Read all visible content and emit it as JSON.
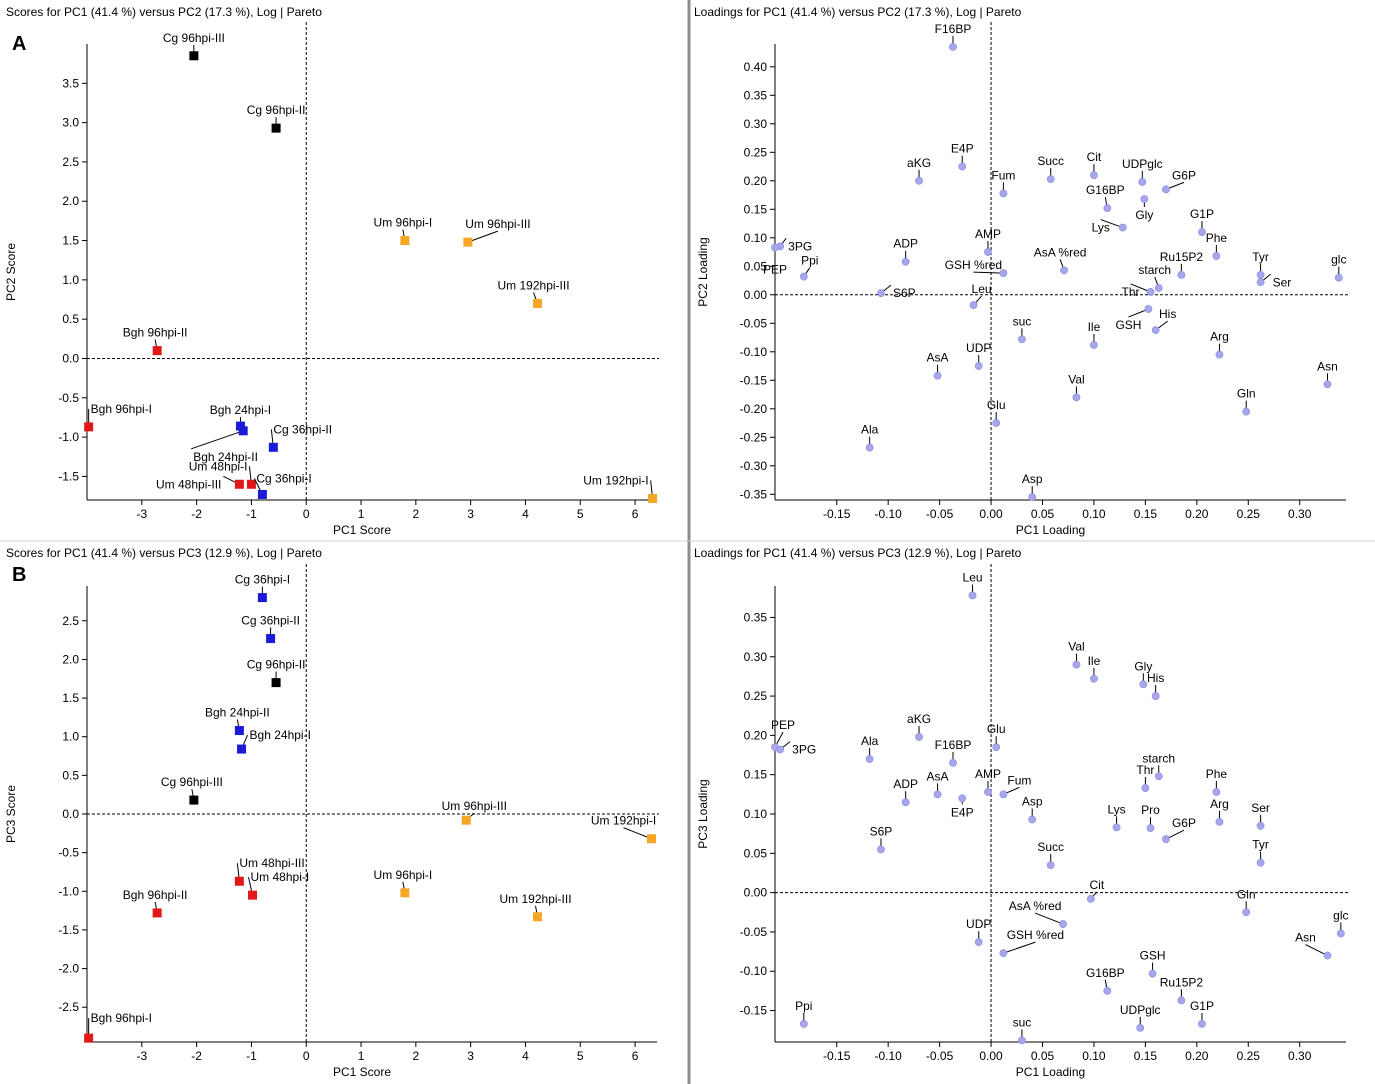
{
  "figure_labels": {
    "a": "A",
    "b": "B"
  },
  "colors": {
    "Bgh": "#e01818",
    "Um48": "#e01818",
    "Cg36": "#1a1ad8",
    "Bgh24": "#1a1ad8",
    "Cg96": "#000000",
    "Um96": "#f5a623",
    "Um192": "#f5a623",
    "loading": "#a6a6ea",
    "divider": "#8c8c8c"
  },
  "chart_data": [
    {
      "type": "scatter",
      "id": "scoresA",
      "title": "Scores for PC1 (41.4 %) versus PC2 (17.3 %), Log | Pareto",
      "xlabel": "PC1 Score",
      "ylabel": "PC2 Score",
      "xlim": [
        -4.0,
        6.4
      ],
      "ylim": [
        -1.8,
        4.0
      ],
      "xticks": [
        "-3",
        "-2",
        "-1",
        "0",
        "1",
        "2",
        "3",
        "4",
        "5",
        "6"
      ],
      "yticks": [
        "-1.5",
        "-1.0",
        "-0.5",
        "0.0",
        "0.5",
        "1.0",
        "1.5",
        "2.0",
        "2.5",
        "3.0",
        "3.5"
      ],
      "points": [
        {
          "label": "Cg 96hpi-III",
          "x": -2.05,
          "y": 3.85,
          "c": "Cg96"
        },
        {
          "label": "Cg 96hpi-II",
          "x": -0.55,
          "y": 2.93,
          "c": "Cg96"
        },
        {
          "label": "Um 96hpi-I",
          "x": 1.8,
          "y": 1.5,
          "c": "Um96"
        },
        {
          "label": "Um 96hpi-III",
          "x": 2.95,
          "y": 1.48,
          "c": "Um96"
        },
        {
          "label": "Um 192hpi-III",
          "x": 4.22,
          "y": 0.7,
          "c": "Um192"
        },
        {
          "label": "Bgh 96hpi-II",
          "x": -2.72,
          "y": 0.1,
          "c": "Bgh"
        },
        {
          "label": "Bgh 96hpi-I",
          "x": -3.97,
          "y": -0.87,
          "c": "Bgh"
        },
        {
          "label": "Bgh 24hpi-I",
          "x": -1.2,
          "y": -0.86,
          "c": "Bgh24"
        },
        {
          "label": "Bgh 24hpi-II",
          "x": -1.15,
          "y": -0.92,
          "c": "Bgh24"
        },
        {
          "label": "Cg 36hpi-II",
          "x": -0.6,
          "y": -1.13,
          "c": "Cg36"
        },
        {
          "label": "Um 48hpi-I",
          "x": -1.0,
          "y": -1.6,
          "c": "Um48"
        },
        {
          "label": "Um 48hpi-III",
          "x": -1.22,
          "y": -1.6,
          "c": "Um48"
        },
        {
          "label": "Cg 36hpi-I",
          "x": -0.8,
          "y": -1.73,
          "c": "Cg36"
        },
        {
          "label": "Um 192hpi-I",
          "x": 6.32,
          "y": -1.78,
          "c": "Um192"
        }
      ]
    },
    {
      "type": "scatter",
      "id": "loadingsA",
      "title": "Loadings for PC1 (41.4 %) versus PC2 (17.3 %), Log | Pareto",
      "xlabel": "PC1 Loading",
      "ylabel": "PC2 Loading",
      "xlim": [
        -0.21,
        0.345
      ],
      "ylim": [
        -0.36,
        0.44
      ],
      "xticks": [
        "-0.15",
        "-0.10",
        "-0.05",
        "0.00",
        "0.05",
        "0.10",
        "0.15",
        "0.20",
        "0.25",
        "0.30"
      ],
      "yticks": [
        "-0.35",
        "-0.30",
        "-0.25",
        "-0.20",
        "-0.15",
        "-0.10",
        "-0.05",
        "0.00",
        "0.05",
        "0.10",
        "0.15",
        "0.20",
        "0.25",
        "0.30",
        "0.35",
        "0.40"
      ],
      "points": [
        {
          "label": "F16BP",
          "x": -0.037,
          "y": 0.435
        },
        {
          "label": "aKG",
          "x": -0.07,
          "y": 0.2
        },
        {
          "label": "E4P",
          "x": -0.028,
          "y": 0.225
        },
        {
          "label": "Fum",
          "x": 0.012,
          "y": 0.178
        },
        {
          "label": "Succ",
          "x": 0.058,
          "y": 0.203
        },
        {
          "label": "Cit",
          "x": 0.1,
          "y": 0.21
        },
        {
          "label": "UDPglc",
          "x": 0.147,
          "y": 0.198
        },
        {
          "label": "G6P",
          "x": 0.17,
          "y": 0.185
        },
        {
          "label": "G16BP",
          "x": 0.113,
          "y": 0.152
        },
        {
          "label": "Gly",
          "x": 0.149,
          "y": 0.168
        },
        {
          "label": "Lys",
          "x": 0.128,
          "y": 0.118
        },
        {
          "label": "G1P",
          "x": 0.205,
          "y": 0.11
        },
        {
          "label": "3PG",
          "x": -0.205,
          "y": 0.085
        },
        {
          "label": "PEP",
          "x": -0.21,
          "y": 0.083
        },
        {
          "label": "Ppi",
          "x": -0.182,
          "y": 0.032
        },
        {
          "label": "ADP",
          "x": -0.083,
          "y": 0.058
        },
        {
          "label": "AMP",
          "x": -0.003,
          "y": 0.075
        },
        {
          "label": "GSH %red",
          "x": 0.012,
          "y": 0.038
        },
        {
          "label": "AsA %red",
          "x": 0.071,
          "y": 0.043
        },
        {
          "label": "Phe",
          "x": 0.219,
          "y": 0.068
        },
        {
          "label": "Tyr",
          "x": 0.262,
          "y": 0.035
        },
        {
          "label": "glc",
          "x": 0.338,
          "y": 0.03
        },
        {
          "label": "Ru15P2",
          "x": 0.185,
          "y": 0.035
        },
        {
          "label": "starch",
          "x": 0.163,
          "y": 0.012
        },
        {
          "label": "Ser",
          "x": 0.262,
          "y": 0.022
        },
        {
          "label": "S6P",
          "x": -0.107,
          "y": 0.003
        },
        {
          "label": "Leu",
          "x": -0.017,
          "y": -0.018
        },
        {
          "label": "Thr",
          "x": 0.155,
          "y": 0.005
        },
        {
          "label": "GSH",
          "x": 0.153,
          "y": -0.025
        },
        {
          "label": "His",
          "x": 0.16,
          "y": -0.062
        },
        {
          "label": "suc",
          "x": 0.03,
          "y": -0.078
        },
        {
          "label": "Ile",
          "x": 0.1,
          "y": -0.088
        },
        {
          "label": "Arg",
          "x": 0.222,
          "y": -0.105
        },
        {
          "label": "Asn",
          "x": 0.327,
          "y": -0.157
        },
        {
          "label": "AsA",
          "x": -0.052,
          "y": -0.142
        },
        {
          "label": "UDP",
          "x": -0.012,
          "y": -0.125
        },
        {
          "label": "Val",
          "x": 0.083,
          "y": -0.18
        },
        {
          "label": "Gln",
          "x": 0.248,
          "y": -0.205
        },
        {
          "label": "Glu",
          "x": 0.005,
          "y": -0.225
        },
        {
          "label": "Ala",
          "x": -0.118,
          "y": -0.268
        },
        {
          "label": "Asp",
          "x": 0.04,
          "y": -0.355
        }
      ]
    },
    {
      "type": "scatter",
      "id": "scoresB",
      "title": "Scores for PC1 (41.4 %) versus PC3 (12.9 %), Log | Pareto",
      "xlabel": "PC1 Score",
      "ylabel": "PC3 Score",
      "xlim": [
        -4.0,
        6.4
      ],
      "ylim": [
        -2.95,
        2.95
      ],
      "xticks": [
        "-3",
        "-2",
        "-1",
        "0",
        "1",
        "2",
        "3",
        "4",
        "5",
        "6"
      ],
      "yticks": [
        "-2.5",
        "-2.0",
        "-1.5",
        "-1.0",
        "-0.5",
        "0.0",
        "0.5",
        "1.0",
        "1.5",
        "2.0",
        "2.5"
      ],
      "points": [
        {
          "label": "Cg 36hpi-I",
          "x": -0.8,
          "y": 2.8,
          "c": "Cg36"
        },
        {
          "label": "Cg 36hpi-II",
          "x": -0.65,
          "y": 2.27,
          "c": "Cg36"
        },
        {
          "label": "Cg 96hpi-II",
          "x": -0.55,
          "y": 1.7,
          "c": "Cg96"
        },
        {
          "label": "Bgh 24hpi-II",
          "x": -1.22,
          "y": 1.08,
          "c": "Bgh24"
        },
        {
          "label": "Bgh 24hpi-I",
          "x": -1.18,
          "y": 0.84,
          "c": "Bgh24"
        },
        {
          "label": "Cg 96hpi-III",
          "x": -2.05,
          "y": 0.18,
          "c": "Cg96"
        },
        {
          "label": "Um 96hpi-III",
          "x": 2.92,
          "y": -0.08,
          "c": "Um96"
        },
        {
          "label": "Um 192hpi-I",
          "x": 6.3,
          "y": -0.32,
          "c": "Um192"
        },
        {
          "label": "Um 48hpi-III",
          "x": -1.22,
          "y": -0.87,
          "c": "Um48"
        },
        {
          "label": "Um 48hpi-I",
          "x": -0.98,
          "y": -1.05,
          "c": "Um48"
        },
        {
          "label": "Um 96hpi-I",
          "x": 1.8,
          "y": -1.02,
          "c": "Um96"
        },
        {
          "label": "Um 192hpi-III",
          "x": 4.22,
          "y": -1.33,
          "c": "Um192"
        },
        {
          "label": "Bgh 96hpi-II",
          "x": -2.72,
          "y": -1.28,
          "c": "Bgh"
        },
        {
          "label": "Bgh 96hpi-I",
          "x": -3.97,
          "y": -2.9,
          "c": "Bgh"
        }
      ]
    },
    {
      "type": "scatter",
      "id": "loadingsB",
      "title": "Loadings for PC1 (41.4 %) versus PC3 (12.9 %), Log | Pareto",
      "xlabel": "PC1 Loading",
      "ylabel": "PC3 Loading",
      "xlim": [
        -0.21,
        0.345
      ],
      "ylim": [
        -0.19,
        0.39
      ],
      "xticks": [
        "-0.15",
        "-0.10",
        "-0.05",
        "0.00",
        "0.05",
        "0.10",
        "0.15",
        "0.20",
        "0.25",
        "0.30"
      ],
      "yticks": [
        "-0.15",
        "-0.10",
        "-0.05",
        "0.00",
        "0.05",
        "0.10",
        "0.15",
        "0.20",
        "0.25",
        "0.30",
        "0.35"
      ],
      "points": [
        {
          "label": "Leu",
          "x": -0.018,
          "y": 0.378
        },
        {
          "label": "Val",
          "x": 0.083,
          "y": 0.29
        },
        {
          "label": "Ile",
          "x": 0.1,
          "y": 0.272
        },
        {
          "label": "Gly",
          "x": 0.148,
          "y": 0.265
        },
        {
          "label": "His",
          "x": 0.16,
          "y": 0.25
        },
        {
          "label": "PEP",
          "x": -0.21,
          "y": 0.185
        },
        {
          "label": "3PG",
          "x": -0.205,
          "y": 0.182
        },
        {
          "label": "Ala",
          "x": -0.118,
          "y": 0.17
        },
        {
          "label": "aKG",
          "x": -0.07,
          "y": 0.198
        },
        {
          "label": "F16BP",
          "x": -0.037,
          "y": 0.165
        },
        {
          "label": "Glu",
          "x": 0.005,
          "y": 0.185
        },
        {
          "label": "starch",
          "x": 0.163,
          "y": 0.148
        },
        {
          "label": "Thr",
          "x": 0.15,
          "y": 0.133
        },
        {
          "label": "Phe",
          "x": 0.219,
          "y": 0.128
        },
        {
          "label": "ADP",
          "x": -0.083,
          "y": 0.115
        },
        {
          "label": "AsA",
          "x": -0.052,
          "y": 0.125
        },
        {
          "label": "AMP",
          "x": -0.003,
          "y": 0.128
        },
        {
          "label": "E4P",
          "x": -0.028,
          "y": 0.12
        },
        {
          "label": "Fum",
          "x": 0.012,
          "y": 0.125
        },
        {
          "label": "Asp",
          "x": 0.04,
          "y": 0.093
        },
        {
          "label": "Lys",
          "x": 0.122,
          "y": 0.083
        },
        {
          "label": "Pro",
          "x": 0.155,
          "y": 0.082
        },
        {
          "label": "G6P",
          "x": 0.17,
          "y": 0.068
        },
        {
          "label": "Arg",
          "x": 0.222,
          "y": 0.09
        },
        {
          "label": "Ser",
          "x": 0.262,
          "y": 0.085
        },
        {
          "label": "S6P",
          "x": -0.107,
          "y": 0.055
        },
        {
          "label": "Succ",
          "x": 0.058,
          "y": 0.035
        },
        {
          "label": "Tyr",
          "x": 0.262,
          "y": 0.038
        },
        {
          "label": "Cit",
          "x": 0.097,
          "y": -0.008
        },
        {
          "label": "Gln",
          "x": 0.248,
          "y": -0.025
        },
        {
          "label": "AsA %red",
          "x": 0.07,
          "y": -0.04
        },
        {
          "label": "UDP",
          "x": -0.012,
          "y": -0.063
        },
        {
          "label": "GSH %red",
          "x": 0.012,
          "y": -0.077
        },
        {
          "label": "glc",
          "x": 0.34,
          "y": -0.052
        },
        {
          "label": "Asn",
          "x": 0.327,
          "y": -0.08
        },
        {
          "label": "GSH",
          "x": 0.157,
          "y": -0.103
        },
        {
          "label": "G16BP",
          "x": 0.113,
          "y": -0.125
        },
        {
          "label": "Ru15P2",
          "x": 0.185,
          "y": -0.137
        },
        {
          "label": "Ppi",
          "x": -0.182,
          "y": -0.167
        },
        {
          "label": "G1P",
          "x": 0.205,
          "y": -0.167
        },
        {
          "label": "UDPglc",
          "x": 0.145,
          "y": -0.172
        },
        {
          "label": "suc",
          "x": 0.03,
          "y": -0.188
        }
      ]
    }
  ]
}
